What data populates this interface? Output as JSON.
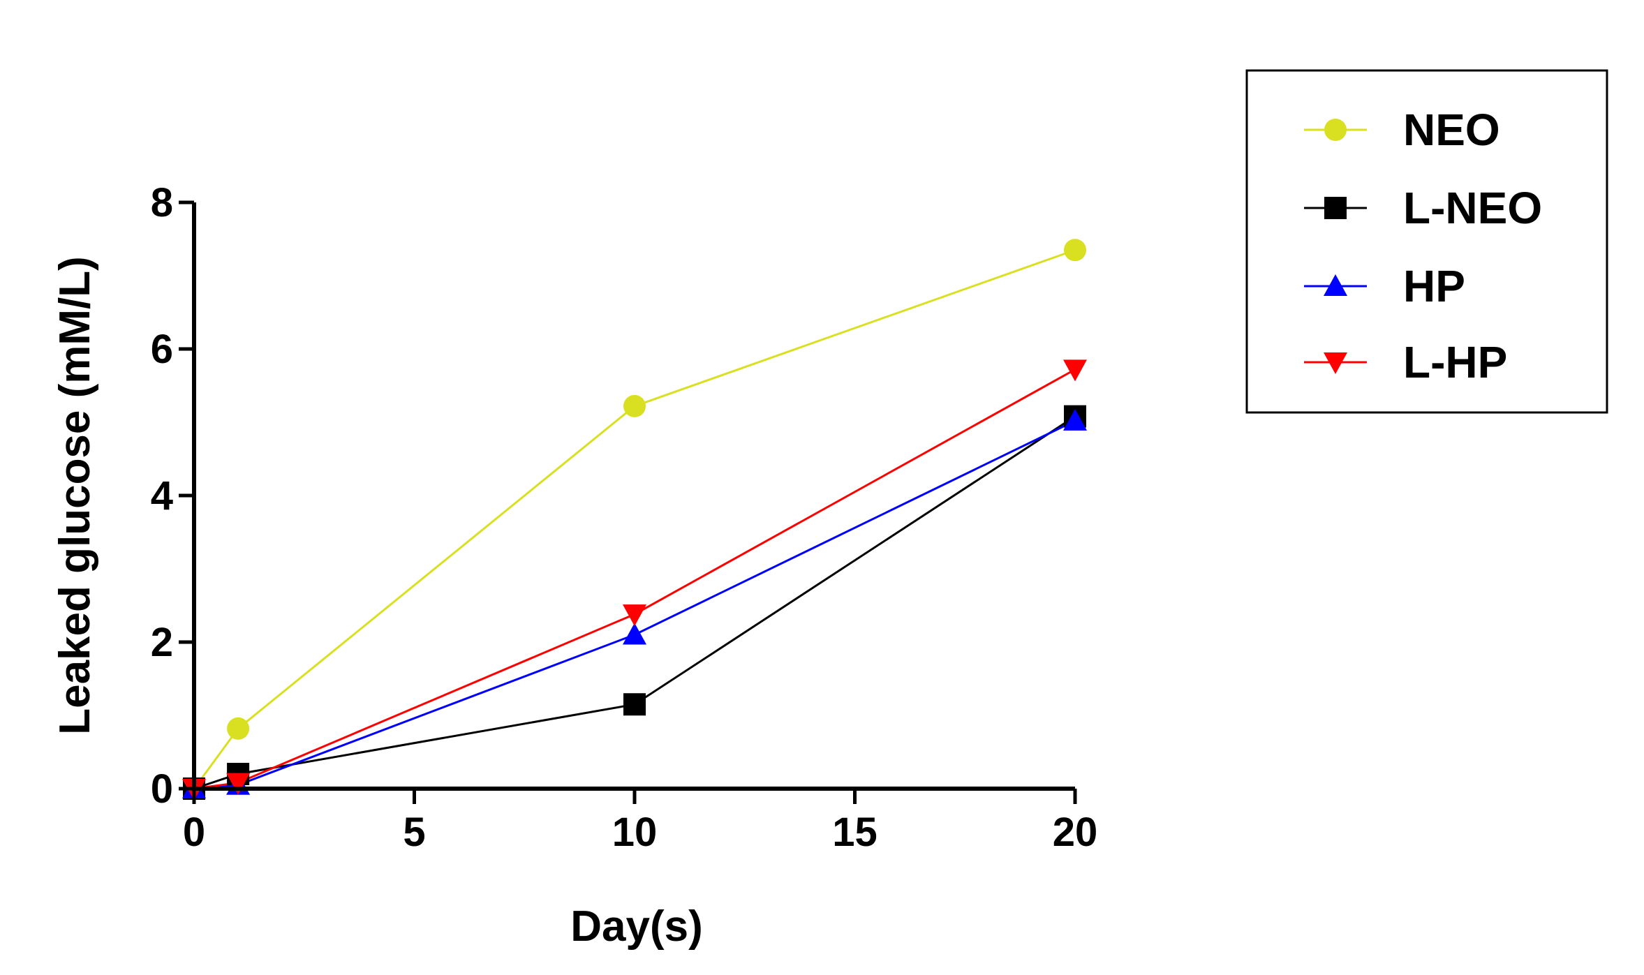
{
  "chart_data": {
    "type": "line",
    "title": "",
    "xlabel": "Day(s)",
    "ylabel": "Leaked glucose (mM/L)",
    "xlim": [
      0,
      20
    ],
    "ylim": [
      0,
      8
    ],
    "xticks": [
      0,
      5,
      10,
      15,
      20
    ],
    "yticks": [
      0,
      2,
      4,
      6,
      8
    ],
    "xtick_labels": [
      "0",
      "5",
      "10",
      "15",
      "20"
    ],
    "ytick_labels": [
      "0",
      "2",
      "4",
      "6",
      "8"
    ],
    "grid": false,
    "legend_position": "top-right, outside plot",
    "x": [
      0,
      1,
      10,
      20
    ],
    "series": [
      {
        "name": "NEO",
        "marker": "circle",
        "color": "#d9e021",
        "values": [
          0,
          0.82,
          5.22,
          7.35
        ]
      },
      {
        "name": "L-NEO",
        "marker": "square",
        "color": "#000000",
        "values": [
          0,
          0.2,
          1.15,
          5.08
        ]
      },
      {
        "name": "HP",
        "marker": "triangle-up",
        "color": "#0000ff",
        "values": [
          0,
          0.05,
          2.1,
          5.02
        ]
      },
      {
        "name": "L-HP",
        "marker": "triangle-down",
        "color": "#ff0000",
        "values": [
          0,
          0.08,
          2.38,
          5.72
        ]
      }
    ]
  }
}
